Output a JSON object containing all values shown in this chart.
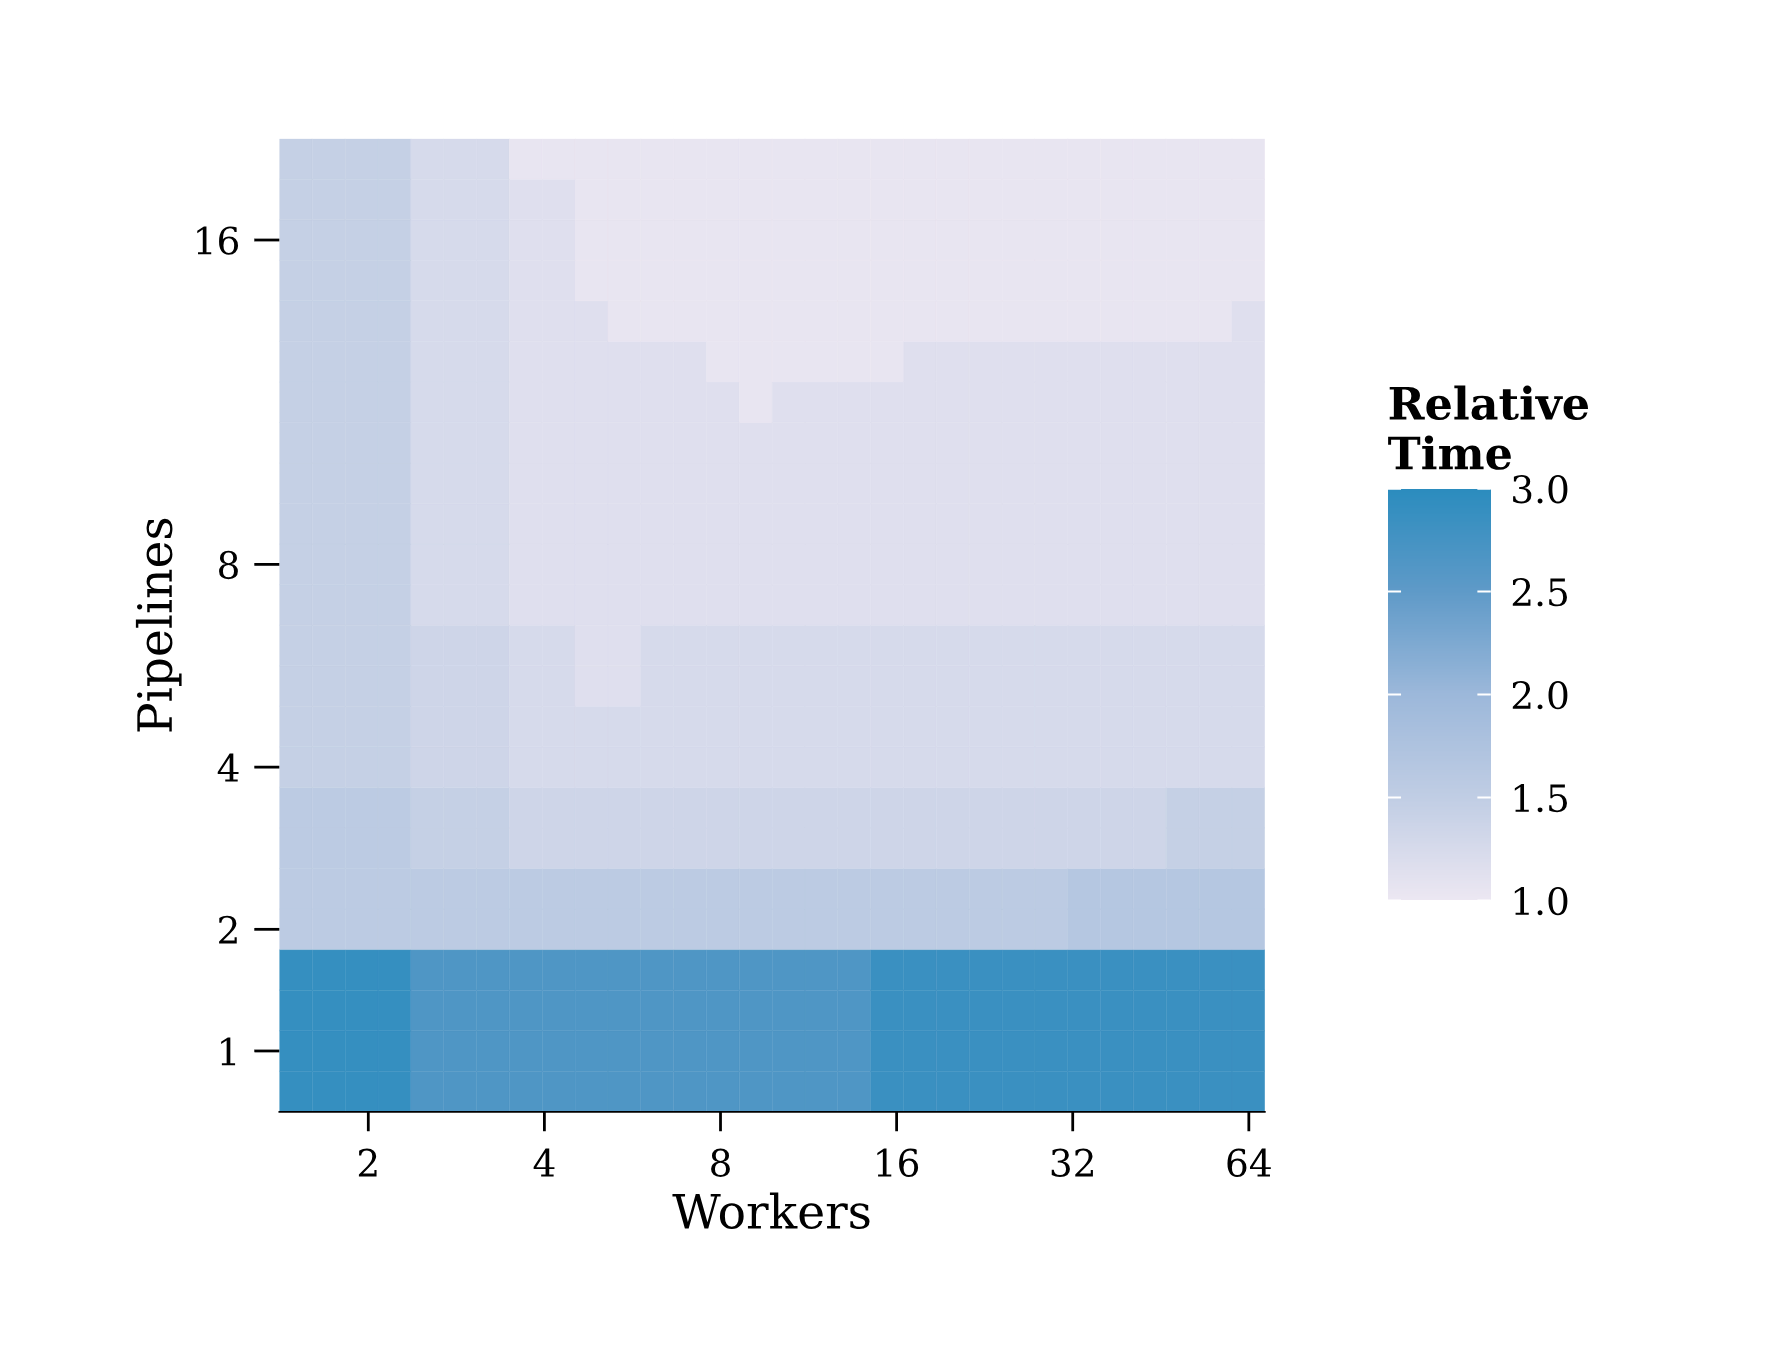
{
  "chart_data": {
    "type": "heatmap",
    "xlabel": "Workers",
    "ylabel": "Pipelines",
    "clabel": "Relative\nTime",
    "x": [
      1.504,
      1.712,
      1.948,
      2.217,
      2.523,
      2.871,
      3.267,
      3.718,
      4.231,
      4.815,
      5.48,
      6.236,
      7.097,
      8.076,
      9.191,
      10.46,
      11.9,
      13.54,
      15.41,
      17.54,
      19.96,
      22.72,
      25.85,
      29.42,
      33.48,
      38.1,
      43.36,
      49.34,
      56.15,
      63.9
    ],
    "y_categories": [
      null,
      null,
      "16",
      null,
      null,
      null,
      null,
      null,
      null,
      null,
      "8",
      null,
      null,
      null,
      null,
      "4",
      null,
      null,
      null,
      "2",
      null,
      null,
      "1",
      null
    ],
    "log": "x",
    "xlim": [
      1.409,
      68.17
    ],
    "xticks": [
      2,
      4,
      8,
      16,
      32,
      64
    ],
    "cells": [
      [
        1.45,
        1.45,
        1.45,
        1.45,
        1.25,
        1.25,
        1.25,
        1.05,
        1.05,
        1.05,
        1.05,
        1.05,
        1.05,
        1.05,
        1.05,
        1.05,
        1.05,
        1.05,
        1.05,
        1.05,
        1.05,
        1.05,
        1.05,
        1.05,
        1.05,
        1.05,
        1.05,
        1.05,
        1.05,
        1.05
      ],
      [
        1.45,
        1.45,
        1.45,
        1.45,
        1.25,
        1.25,
        1.25,
        1.15,
        1.15,
        1.05,
        1.05,
        1.05,
        1.05,
        1.05,
        1.05,
        1.05,
        1.05,
        1.05,
        1.05,
        1.05,
        1.05,
        1.05,
        1.05,
        1.05,
        1.05,
        1.05,
        1.05,
        1.05,
        1.05,
        1.05
      ],
      [
        1.45,
        1.45,
        1.45,
        1.45,
        1.25,
        1.25,
        1.25,
        1.15,
        1.15,
        1.05,
        1.05,
        1.05,
        1.05,
        1.05,
        1.05,
        1.05,
        1.05,
        1.05,
        1.05,
        1.05,
        1.05,
        1.05,
        1.05,
        1.05,
        1.05,
        1.05,
        1.05,
        1.05,
        1.05,
        1.05
      ],
      [
        1.45,
        1.45,
        1.45,
        1.45,
        1.25,
        1.25,
        1.25,
        1.15,
        1.15,
        1.05,
        1.05,
        1.05,
        1.05,
        1.05,
        1.05,
        1.05,
        1.05,
        1.05,
        1.05,
        1.05,
        1.05,
        1.05,
        1.05,
        1.05,
        1.05,
        1.05,
        1.05,
        1.05,
        1.05,
        1.05
      ],
      [
        1.45,
        1.45,
        1.45,
        1.45,
        1.25,
        1.25,
        1.25,
        1.15,
        1.15,
        1.15,
        1.05,
        1.05,
        1.05,
        1.05,
        1.05,
        1.05,
        1.05,
        1.05,
        1.05,
        1.05,
        1.05,
        1.05,
        1.05,
        1.05,
        1.05,
        1.05,
        1.05,
        1.05,
        1.05,
        1.15
      ],
      [
        1.45,
        1.45,
        1.45,
        1.45,
        1.25,
        1.25,
        1.25,
        1.15,
        1.15,
        1.15,
        1.15,
        1.15,
        1.15,
        1.05,
        1.05,
        1.05,
        1.05,
        1.05,
        1.05,
        1.15,
        1.15,
        1.15,
        1.15,
        1.15,
        1.15,
        1.15,
        1.15,
        1.15,
        1.15,
        1.15
      ],
      [
        1.45,
        1.45,
        1.45,
        1.45,
        1.25,
        1.25,
        1.25,
        1.15,
        1.15,
        1.15,
        1.15,
        1.15,
        1.15,
        1.15,
        1.05,
        1.15,
        1.15,
        1.15,
        1.15,
        1.15,
        1.15,
        1.15,
        1.15,
        1.15,
        1.15,
        1.15,
        1.15,
        1.15,
        1.15,
        1.15
      ],
      [
        1.45,
        1.45,
        1.45,
        1.45,
        1.25,
        1.25,
        1.25,
        1.15,
        1.15,
        1.15,
        1.15,
        1.15,
        1.15,
        1.15,
        1.15,
        1.15,
        1.15,
        1.15,
        1.15,
        1.15,
        1.15,
        1.15,
        1.15,
        1.15,
        1.15,
        1.15,
        1.15,
        1.15,
        1.15,
        1.15
      ],
      [
        1.45,
        1.45,
        1.45,
        1.45,
        1.25,
        1.25,
        1.25,
        1.15,
        1.15,
        1.15,
        1.15,
        1.15,
        1.15,
        1.15,
        1.15,
        1.15,
        1.15,
        1.15,
        1.15,
        1.15,
        1.15,
        1.15,
        1.15,
        1.15,
        1.15,
        1.15,
        1.15,
        1.15,
        1.15,
        1.15
      ],
      [
        1.45,
        1.45,
        1.45,
        1.45,
        1.25,
        1.25,
        1.25,
        1.15,
        1.15,
        1.15,
        1.15,
        1.15,
        1.15,
        1.15,
        1.15,
        1.15,
        1.15,
        1.15,
        1.15,
        1.15,
        1.15,
        1.15,
        1.15,
        1.15,
        1.15,
        1.15,
        1.15,
        1.15,
        1.15,
        1.15
      ],
      [
        1.45,
        1.45,
        1.45,
        1.45,
        1.25,
        1.25,
        1.25,
        1.15,
        1.15,
        1.15,
        1.15,
        1.15,
        1.15,
        1.15,
        1.15,
        1.15,
        1.15,
        1.15,
        1.15,
        1.15,
        1.15,
        1.15,
        1.15,
        1.15,
        1.15,
        1.15,
        1.15,
        1.15,
        1.15,
        1.15
      ],
      [
        1.45,
        1.45,
        1.45,
        1.45,
        1.25,
        1.25,
        1.25,
        1.15,
        1.15,
        1.15,
        1.15,
        1.15,
        1.15,
        1.15,
        1.15,
        1.15,
        1.15,
        1.15,
        1.15,
        1.15,
        1.15,
        1.15,
        1.15,
        1.15,
        1.15,
        1.15,
        1.15,
        1.15,
        1.15,
        1.15
      ],
      [
        1.45,
        1.45,
        1.45,
        1.45,
        1.35,
        1.35,
        1.35,
        1.25,
        1.25,
        1.15,
        1.15,
        1.25,
        1.25,
        1.25,
        1.25,
        1.25,
        1.25,
        1.25,
        1.25,
        1.25,
        1.25,
        1.25,
        1.25,
        1.25,
        1.25,
        1.25,
        1.25,
        1.25,
        1.25,
        1.25
      ],
      [
        1.45,
        1.45,
        1.45,
        1.45,
        1.35,
        1.35,
        1.35,
        1.25,
        1.25,
        1.15,
        1.15,
        1.25,
        1.25,
        1.25,
        1.25,
        1.25,
        1.25,
        1.25,
        1.25,
        1.25,
        1.25,
        1.25,
        1.25,
        1.25,
        1.25,
        1.25,
        1.25,
        1.25,
        1.25,
        1.25
      ],
      [
        1.45,
        1.45,
        1.45,
        1.45,
        1.35,
        1.35,
        1.35,
        1.25,
        1.25,
        1.25,
        1.25,
        1.25,
        1.25,
        1.25,
        1.25,
        1.25,
        1.25,
        1.25,
        1.25,
        1.25,
        1.25,
        1.25,
        1.25,
        1.25,
        1.25,
        1.25,
        1.25,
        1.25,
        1.25,
        1.25
      ],
      [
        1.45,
        1.45,
        1.45,
        1.45,
        1.35,
        1.35,
        1.35,
        1.25,
        1.25,
        1.25,
        1.25,
        1.25,
        1.25,
        1.25,
        1.25,
        1.25,
        1.25,
        1.25,
        1.25,
        1.25,
        1.25,
        1.25,
        1.25,
        1.25,
        1.25,
        1.25,
        1.25,
        1.25,
        1.25,
        1.25
      ],
      [
        1.55,
        1.55,
        1.55,
        1.55,
        1.45,
        1.45,
        1.45,
        1.35,
        1.35,
        1.35,
        1.35,
        1.35,
        1.35,
        1.35,
        1.35,
        1.35,
        1.35,
        1.35,
        1.35,
        1.35,
        1.35,
        1.35,
        1.35,
        1.35,
        1.35,
        1.35,
        1.35,
        1.45,
        1.45,
        1.45
      ],
      [
        1.55,
        1.55,
        1.55,
        1.55,
        1.45,
        1.45,
        1.45,
        1.35,
        1.35,
        1.35,
        1.35,
        1.35,
        1.35,
        1.35,
        1.35,
        1.35,
        1.35,
        1.35,
        1.35,
        1.35,
        1.35,
        1.35,
        1.35,
        1.35,
        1.35,
        1.35,
        1.35,
        1.45,
        1.45,
        1.45
      ],
      [
        1.55,
        1.55,
        1.55,
        1.55,
        1.55,
        1.55,
        1.55,
        1.55,
        1.55,
        1.55,
        1.55,
        1.55,
        1.55,
        1.55,
        1.55,
        1.55,
        1.55,
        1.55,
        1.55,
        1.55,
        1.55,
        1.55,
        1.55,
        1.55,
        1.65,
        1.65,
        1.65,
        1.65,
        1.65,
        1.65
      ],
      [
        1.55,
        1.55,
        1.55,
        1.55,
        1.55,
        1.55,
        1.55,
        1.55,
        1.55,
        1.55,
        1.55,
        1.55,
        1.55,
        1.55,
        1.55,
        1.55,
        1.55,
        1.55,
        1.55,
        1.55,
        1.55,
        1.55,
        1.55,
        1.55,
        1.65,
        1.65,
        1.65,
        1.65,
        1.65,
        1.65
      ],
      [
        2.9,
        2.9,
        2.9,
        2.9,
        2.65,
        2.65,
        2.65,
        2.65,
        2.65,
        2.65,
        2.65,
        2.65,
        2.65,
        2.65,
        2.65,
        2.65,
        2.65,
        2.65,
        2.85,
        2.85,
        2.85,
        2.85,
        2.85,
        2.85,
        2.85,
        2.85,
        2.85,
        2.85,
        2.85,
        2.85
      ],
      [
        2.9,
        2.9,
        2.9,
        2.9,
        2.65,
        2.65,
        2.65,
        2.65,
        2.65,
        2.65,
        2.65,
        2.65,
        2.65,
        2.65,
        2.65,
        2.65,
        2.65,
        2.65,
        2.85,
        2.85,
        2.85,
        2.85,
        2.85,
        2.85,
        2.85,
        2.85,
        2.85,
        2.85,
        2.85,
        2.85
      ],
      [
        2.9,
        2.9,
        2.9,
        2.9,
        2.65,
        2.65,
        2.65,
        2.65,
        2.65,
        2.65,
        2.65,
        2.65,
        2.65,
        2.65,
        2.65,
        2.65,
        2.65,
        2.65,
        2.85,
        2.85,
        2.85,
        2.85,
        2.85,
        2.85,
        2.85,
        2.85,
        2.85,
        2.85,
        2.85,
        2.85
      ],
      [
        2.9,
        2.9,
        2.9,
        2.9,
        2.65,
        2.65,
        2.65,
        2.65,
        2.65,
        2.65,
        2.65,
        2.65,
        2.65,
        2.65,
        2.65,
        2.65,
        2.65,
        2.65,
        2.85,
        2.85,
        2.85,
        2.85,
        2.85,
        2.85,
        2.85,
        2.85,
        2.85,
        2.85,
        2.85,
        2.85
      ]
    ],
    "clim": [
      1.0,
      3.0
    ],
    "cticks": [
      {
        "value": 1.0,
        "label": "1.0"
      },
      {
        "value": 1.5,
        "label": "1.5"
      },
      {
        "value": 2.0,
        "label": "2.0"
      },
      {
        "value": 2.5,
        "label": "2.5"
      },
      {
        "value": 3.0,
        "label": "3.0"
      }
    ],
    "grid": false
  }
}
